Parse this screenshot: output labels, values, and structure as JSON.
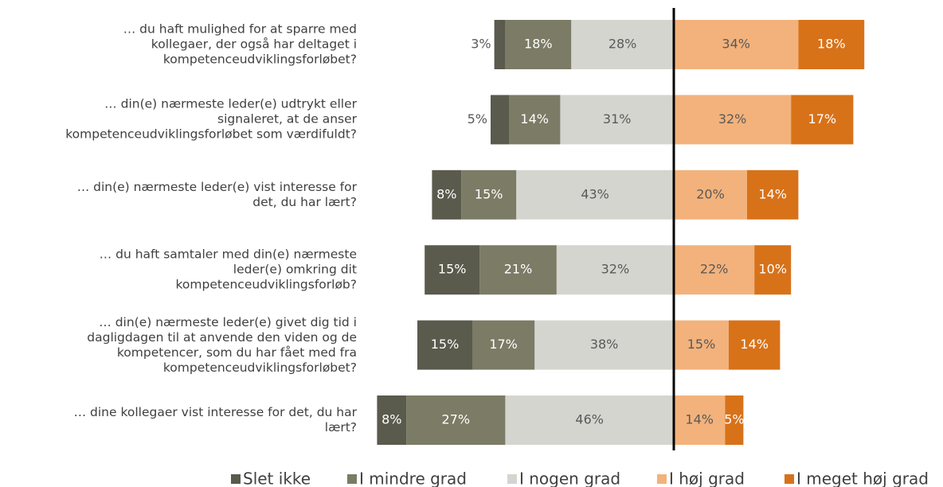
{
  "chart_data": {
    "type": "diverging_bar",
    "categories": [
      "… du haft mulighed for at sparre med\nkollegaer, der også har deltaget i\nkompetenceudviklingsforløbet?",
      "… din(e) nærmeste leder(e) udtrykt eller\nsignaleret, at de anser\nkompetenceudviklingsforløbet som værdifuldt?",
      "… din(e) nærmeste leder(e) vist interesse for\ndet, du har lært?",
      "… du haft samtaler med din(e) nærmeste\nleder(e) omkring dit\nkompetenceudviklingsforløb?",
      "… din(e) nærmeste leder(e) givet dig tid i\ndagligdagen til at anvende den viden og de\nkompetencer, som du har fået med fra\nkompetenceudviklingsforløbet?",
      "… dine kollegaer vist interesse for det, du har\nlært?"
    ],
    "series": [
      {
        "name": "Slet ikke",
        "color": "#5a5a4d",
        "values": [
          3,
          5,
          8,
          15,
          15,
          8
        ],
        "value_labels": [
          "3%",
          "5%",
          "8%",
          "15%",
          "15%",
          "8%"
        ]
      },
      {
        "name": "I mindre grad",
        "color": "#7b7b66",
        "values": [
          18,
          14,
          15,
          21,
          17,
          27
        ],
        "value_labels": [
          "18%",
          "14%",
          "15%",
          "21%",
          "17%",
          "27%"
        ]
      },
      {
        "name": "I nogen grad",
        "color": "#d5d5cf",
        "values": [
          28,
          31,
          43,
          32,
          38,
          46
        ],
        "value_labels": [
          "28%",
          "31%",
          "43%",
          "32%",
          "38%",
          "46%"
        ]
      },
      {
        "name": "I høj grad",
        "color": "#f3b27b",
        "values": [
          34,
          32,
          20,
          22,
          15,
          14
        ],
        "value_labels": [
          "34%",
          "32%",
          "20%",
          "22%",
          "15%",
          "14%"
        ]
      },
      {
        "name": "I meget høj grad",
        "color": "#d87219",
        "values": [
          18,
          17,
          14,
          10,
          14,
          5
        ],
        "value_labels": [
          "18%",
          "17%",
          "14%",
          "10%",
          "14%",
          "5%"
        ]
      }
    ]
  }
}
